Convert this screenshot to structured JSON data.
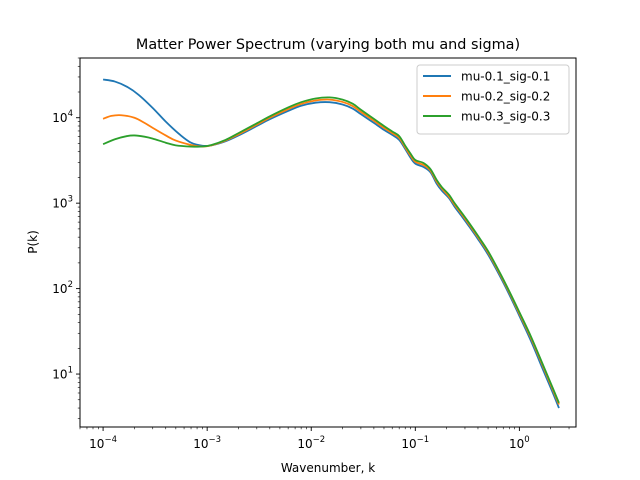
{
  "chart_data": {
    "type": "line",
    "title": "Matter Power Spectrum (varying both mu and sigma)",
    "xlabel": "Wavenumber, k",
    "ylabel": "P(k)",
    "xscale": "log",
    "yscale": "log",
    "xlim": [
      6e-05,
      3.5
    ],
    "ylim": [
      2.4,
      50000
    ],
    "grid": false,
    "legend_position": "top-right",
    "x_ticks": [
      {
        "value": 0.0001,
        "base": "10",
        "exp": "−4"
      },
      {
        "value": 0.001,
        "base": "10",
        "exp": "−3"
      },
      {
        "value": 0.01,
        "base": "10",
        "exp": "−2"
      },
      {
        "value": 0.1,
        "base": "10",
        "exp": "−1"
      },
      {
        "value": 1,
        "base": "10",
        "exp": "0"
      }
    ],
    "y_ticks": [
      {
        "value": 10,
        "base": "10",
        "exp": "1"
      },
      {
        "value": 100,
        "base": "10",
        "exp": "2"
      },
      {
        "value": 1000,
        "base": "10",
        "exp": "3"
      },
      {
        "value": 10000,
        "base": "10",
        "exp": "4"
      }
    ],
    "series": [
      {
        "name": "mu-0.1_sig-0.1",
        "color": "#1f77b4",
        "points": [
          [
            0.0001,
            28000
          ],
          [
            0.00013,
            26500
          ],
          [
            0.00017,
            23000
          ],
          [
            0.00022,
            18500
          ],
          [
            0.0003,
            13000
          ],
          [
            0.0004,
            9000
          ],
          [
            0.00055,
            6300
          ],
          [
            0.0007,
            5100
          ],
          [
            0.0009,
            4700
          ],
          [
            0.0011,
            4750
          ],
          [
            0.0015,
            5300
          ],
          [
            0.002,
            6200
          ],
          [
            0.003,
            8000
          ],
          [
            0.004,
            9600
          ],
          [
            0.006,
            12000
          ],
          [
            0.008,
            13800
          ],
          [
            0.011,
            15000
          ],
          [
            0.015,
            15200
          ],
          [
            0.02,
            14300
          ],
          [
            0.025,
            12800
          ],
          [
            0.03,
            11000
          ],
          [
            0.04,
            8700
          ],
          [
            0.05,
            7200
          ],
          [
            0.06,
            6300
          ],
          [
            0.07,
            5500
          ],
          [
            0.08,
            4300
          ],
          [
            0.09,
            3400
          ],
          [
            0.1,
            2900
          ],
          [
            0.12,
            2650
          ],
          [
            0.14,
            2300
          ],
          [
            0.16,
            1700
          ],
          [
            0.18,
            1400
          ],
          [
            0.21,
            1150
          ],
          [
            0.24,
            900
          ],
          [
            0.28,
            700
          ],
          [
            0.32,
            560
          ],
          [
            0.4,
            380
          ],
          [
            0.5,
            250
          ],
          [
            0.65,
            140
          ],
          [
            0.8,
            85
          ],
          [
            1.0,
            48
          ],
          [
            1.3,
            24
          ],
          [
            1.7,
            11
          ],
          [
            2.1,
            6
          ],
          [
            2.4,
            4
          ]
        ]
      },
      {
        "name": "mu-0.2_sig-0.2",
        "color": "#ff7f0e",
        "points": [
          [
            0.0001,
            9700
          ],
          [
            0.00012,
            10500
          ],
          [
            0.00015,
            10700
          ],
          [
            0.0002,
            10000
          ],
          [
            0.00025,
            8700
          ],
          [
            0.0003,
            7600
          ],
          [
            0.0004,
            6200
          ],
          [
            0.0005,
            5400
          ],
          [
            0.0007,
            4800
          ],
          [
            0.0009,
            4600
          ],
          [
            0.0011,
            4750
          ],
          [
            0.0015,
            5400
          ],
          [
            0.002,
            6400
          ],
          [
            0.003,
            8300
          ],
          [
            0.004,
            10000
          ],
          [
            0.006,
            12600
          ],
          [
            0.008,
            14500
          ],
          [
            0.011,
            15900
          ],
          [
            0.015,
            16300
          ],
          [
            0.02,
            15300
          ],
          [
            0.025,
            13700
          ],
          [
            0.03,
            11700
          ],
          [
            0.04,
            9200
          ],
          [
            0.05,
            7600
          ],
          [
            0.06,
            6600
          ],
          [
            0.07,
            5800
          ],
          [
            0.08,
            4500
          ],
          [
            0.09,
            3600
          ],
          [
            0.1,
            3050
          ],
          [
            0.12,
            2800
          ],
          [
            0.14,
            2400
          ],
          [
            0.16,
            1800
          ],
          [
            0.18,
            1480
          ],
          [
            0.21,
            1200
          ],
          [
            0.24,
            950
          ],
          [
            0.28,
            740
          ],
          [
            0.32,
            590
          ],
          [
            0.4,
            400
          ],
          [
            0.5,
            265
          ],
          [
            0.65,
            148
          ],
          [
            0.8,
            90
          ],
          [
            1.0,
            51
          ],
          [
            1.3,
            26
          ],
          [
            1.7,
            12
          ],
          [
            2.1,
            6.5
          ],
          [
            2.4,
            4.4
          ]
        ]
      },
      {
        "name": "mu-0.3_sig-0.3",
        "color": "#2ca02c",
        "points": [
          [
            0.0001,
            4900
          ],
          [
            0.00013,
            5600
          ],
          [
            0.00017,
            6100
          ],
          [
            0.0002,
            6200
          ],
          [
            0.00025,
            6000
          ],
          [
            0.0003,
            5700
          ],
          [
            0.0004,
            5100
          ],
          [
            0.0005,
            4750
          ],
          [
            0.0007,
            4600
          ],
          [
            0.0009,
            4600
          ],
          [
            0.0011,
            4800
          ],
          [
            0.0015,
            5500
          ],
          [
            0.002,
            6600
          ],
          [
            0.003,
            8600
          ],
          [
            0.004,
            10400
          ],
          [
            0.006,
            13200
          ],
          [
            0.008,
            15200
          ],
          [
            0.011,
            16800
          ],
          [
            0.015,
            17300
          ],
          [
            0.02,
            16300
          ],
          [
            0.025,
            14600
          ],
          [
            0.03,
            12400
          ],
          [
            0.04,
            9700
          ],
          [
            0.05,
            8000
          ],
          [
            0.06,
            6900
          ],
          [
            0.07,
            6100
          ],
          [
            0.08,
            4700
          ],
          [
            0.09,
            3800
          ],
          [
            0.1,
            3200
          ],
          [
            0.12,
            2950
          ],
          [
            0.14,
            2500
          ],
          [
            0.16,
            1880
          ],
          [
            0.18,
            1540
          ],
          [
            0.21,
            1260
          ],
          [
            0.24,
            990
          ],
          [
            0.28,
            770
          ],
          [
            0.32,
            615
          ],
          [
            0.4,
            415
          ],
          [
            0.5,
            275
          ],
          [
            0.65,
            153
          ],
          [
            0.8,
            93
          ],
          [
            1.0,
            53
          ],
          [
            1.3,
            27
          ],
          [
            1.7,
            12.5
          ],
          [
            2.1,
            6.8
          ],
          [
            2.4,
            4.6
          ]
        ]
      }
    ]
  }
}
